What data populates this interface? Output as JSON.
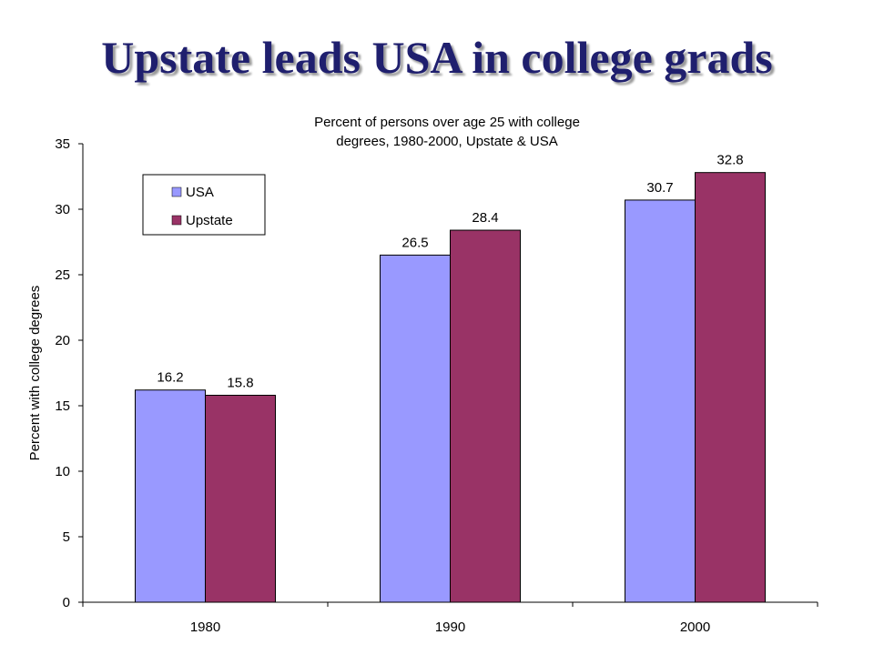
{
  "slide": {
    "title": "Upstate leads USA in college grads"
  },
  "chart_data": {
    "type": "bar",
    "title_lines": [
      "Percent of persons over age 25 with college",
      "degrees, 1980-2000, Upstate & USA"
    ],
    "ylabel": "Percent with college degrees",
    "xlabel": "",
    "categories": [
      "1980",
      "1990",
      "2000"
    ],
    "series": [
      {
        "name": "USA",
        "color": "#9999ff",
        "values": [
          16.2,
          26.5,
          30.7
        ]
      },
      {
        "name": "Upstate",
        "color": "#993366",
        "values": [
          15.8,
          28.4,
          32.8
        ]
      }
    ],
    "ylim": [
      0,
      35
    ],
    "yticks": [
      0,
      5,
      10,
      15,
      20,
      25,
      30,
      35
    ],
    "grid": false,
    "legend": "top-left",
    "data_labels": true
  }
}
